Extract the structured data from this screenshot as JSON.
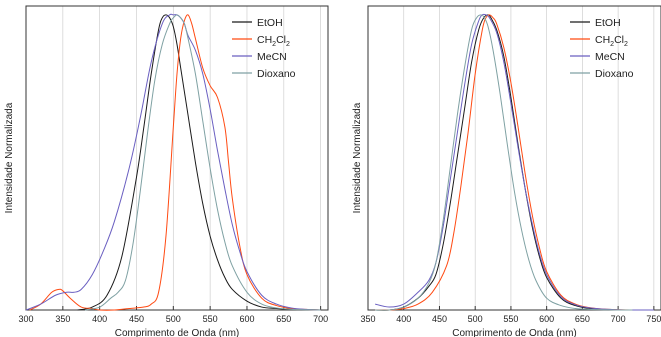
{
  "chart_data": [
    {
      "type": "line",
      "xlabel": "Comprimento de Onda (nm)",
      "ylabel": "Intensidade Normalizada",
      "xlim": [
        300,
        710
      ],
      "ylim": [
        0,
        1.03
      ],
      "xticks": [
        "300",
        "350",
        "400",
        "450",
        "500",
        "550",
        "600",
        "650",
        "700"
      ],
      "xtick_values": [
        300,
        350,
        400,
        450,
        500,
        550,
        600,
        650,
        700
      ],
      "grid": "vertical",
      "legend_position": "top-right",
      "series": [
        {
          "name": "EtOH",
          "color": "#1a1a1a",
          "x": [
            370,
            390,
            410,
            430,
            450,
            460,
            470,
            480,
            485,
            490,
            495,
            500,
            505,
            510,
            520,
            530,
            540,
            550,
            560,
            570,
            580,
            600,
            620,
            640,
            660,
            680,
            700
          ],
          "y": [
            0.0,
            0.01,
            0.05,
            0.18,
            0.45,
            0.62,
            0.8,
            0.95,
            0.99,
            1.0,
            0.99,
            0.96,
            0.9,
            0.82,
            0.66,
            0.5,
            0.36,
            0.25,
            0.17,
            0.11,
            0.07,
            0.03,
            0.01,
            0.005,
            0.002,
            0.001,
            0.0
          ]
        },
        {
          "name": "CH2Cl2",
          "color": "#ff4a12",
          "x": [
            305,
            320,
            335,
            345,
            350,
            360,
            375,
            390,
            400,
            420,
            440,
            460,
            470,
            480,
            490,
            500,
            505,
            510,
            515,
            520,
            525,
            530,
            540,
            550,
            560,
            570,
            575,
            580,
            590,
            600,
            620,
            640,
            660,
            680,
            700
          ],
          "y": [
            0.0,
            0.02,
            0.06,
            0.07,
            0.065,
            0.04,
            0.01,
            0.005,
            0.0,
            0.0,
            0.005,
            0.01,
            0.02,
            0.06,
            0.25,
            0.62,
            0.8,
            0.92,
            0.98,
            1.0,
            0.97,
            0.92,
            0.82,
            0.76,
            0.72,
            0.62,
            0.5,
            0.38,
            0.22,
            0.12,
            0.04,
            0.015,
            0.005,
            0.002,
            0.0
          ]
        },
        {
          "name": "MeCN",
          "color": "#6a5fc1",
          "x": [
            300,
            320,
            340,
            355,
            365,
            375,
            390,
            405,
            420,
            440,
            455,
            470,
            485,
            495,
            500,
            505,
            510,
            515,
            520,
            530,
            540,
            550,
            560,
            570,
            580,
            590,
            600,
            620,
            640,
            660,
            680,
            700
          ],
          "y": [
            0.0,
            0.02,
            0.05,
            0.06,
            0.06,
            0.07,
            0.12,
            0.2,
            0.3,
            0.48,
            0.65,
            0.84,
            0.97,
            1.0,
            1.0,
            1.0,
            0.99,
            0.97,
            0.93,
            0.88,
            0.8,
            0.68,
            0.54,
            0.41,
            0.29,
            0.2,
            0.13,
            0.05,
            0.02,
            0.007,
            0.002,
            0.0
          ]
        },
        {
          "name": "Dioxano",
          "color": "#7fa1a3",
          "x": [
            380,
            400,
            415,
            425,
            435,
            445,
            455,
            465,
            475,
            485,
            495,
            500,
            505,
            510,
            515,
            520,
            530,
            540,
            550,
            560,
            570,
            580,
            600,
            620,
            640,
            660,
            680,
            700
          ],
          "y": [
            0.0,
            0.01,
            0.04,
            0.06,
            0.1,
            0.22,
            0.4,
            0.6,
            0.78,
            0.9,
            0.97,
            0.99,
            1.0,
            0.99,
            0.97,
            0.92,
            0.8,
            0.64,
            0.48,
            0.34,
            0.23,
            0.15,
            0.06,
            0.02,
            0.007,
            0.002,
            0.001,
            0.0
          ]
        }
      ]
    },
    {
      "type": "line",
      "xlabel": "Comprimento de Onda (nm)",
      "ylabel": "Intensidade Normalizada",
      "xlim": [
        350,
        760
      ],
      "ylim": [
        0,
        1.03
      ],
      "xticks": [
        "350",
        "400",
        "450",
        "500",
        "550",
        "600",
        "650",
        "700",
        "750"
      ],
      "xtick_values": [
        350,
        400,
        450,
        500,
        550,
        600,
        650,
        700,
        750
      ],
      "grid": "vertical",
      "legend_position": "top-right",
      "series": [
        {
          "name": "EtOH",
          "color": "#1a1a1a",
          "x": [
            360,
            380,
            400,
            420,
            435,
            445,
            455,
            465,
            475,
            485,
            495,
            505,
            512,
            518,
            522,
            530,
            540,
            550,
            560,
            570,
            580,
            590,
            600,
            620,
            640,
            660,
            680,
            700,
            720
          ],
          "y": [
            0.0,
            0.0,
            0.01,
            0.04,
            0.08,
            0.12,
            0.22,
            0.36,
            0.52,
            0.68,
            0.84,
            0.95,
            0.99,
            1.0,
            0.99,
            0.95,
            0.86,
            0.72,
            0.56,
            0.41,
            0.28,
            0.18,
            0.11,
            0.04,
            0.015,
            0.005,
            0.002,
            0.0,
            0.0
          ]
        },
        {
          "name": "CH2Cl2",
          "color": "#ff4a12",
          "x": [
            360,
            380,
            400,
            420,
            440,
            460,
            470,
            480,
            490,
            500,
            510,
            515,
            520,
            525,
            530,
            540,
            550,
            560,
            570,
            580,
            590,
            600,
            620,
            640,
            660,
            680,
            700,
            720
          ],
          "y": [
            0.0,
            0.0,
            0.005,
            0.02,
            0.06,
            0.15,
            0.26,
            0.42,
            0.6,
            0.8,
            0.95,
            0.99,
            1.0,
            0.99,
            0.97,
            0.89,
            0.77,
            0.62,
            0.46,
            0.32,
            0.21,
            0.13,
            0.05,
            0.02,
            0.008,
            0.003,
            0.001,
            0.0
          ]
        },
        {
          "name": "MeCN",
          "color": "#6a5fc1",
          "x": [
            360,
            380,
            400,
            420,
            435,
            445,
            455,
            465,
            475,
            485,
            495,
            505,
            510,
            515,
            520,
            530,
            540,
            550,
            560,
            570,
            580,
            590,
            600,
            620,
            640,
            660,
            680,
            700,
            720,
            750
          ],
          "y": [
            0.02,
            0.01,
            0.02,
            0.06,
            0.1,
            0.16,
            0.28,
            0.44,
            0.6,
            0.76,
            0.9,
            0.98,
            1.0,
            1.0,
            0.99,
            0.94,
            0.84,
            0.7,
            0.55,
            0.41,
            0.29,
            0.19,
            0.12,
            0.045,
            0.018,
            0.007,
            0.003,
            0.001,
            0.0,
            0.0
          ]
        },
        {
          "name": "Dioxano",
          "color": "#7fa1a3",
          "x": [
            360,
            380,
            400,
            420,
            435,
            445,
            455,
            465,
            475,
            485,
            495,
            502,
            508,
            513,
            518,
            525,
            535,
            545,
            555,
            565,
            575,
            585,
            600,
            620,
            640,
            660,
            680,
            700,
            720
          ],
          "y": [
            0.0,
            0.0,
            0.01,
            0.04,
            0.09,
            0.16,
            0.3,
            0.48,
            0.66,
            0.82,
            0.95,
            0.99,
            1.0,
            0.99,
            0.96,
            0.88,
            0.73,
            0.56,
            0.4,
            0.27,
            0.17,
            0.1,
            0.04,
            0.015,
            0.005,
            0.002,
            0.001,
            0.0,
            0.0
          ]
        }
      ]
    }
  ]
}
